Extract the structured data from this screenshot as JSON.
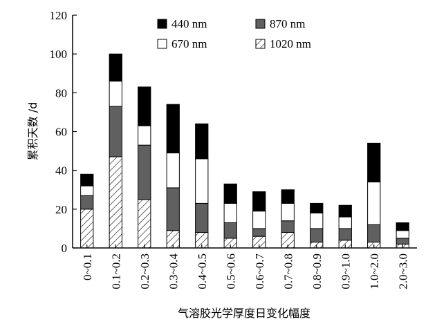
{
  "chart_data": {
    "type": "bar",
    "stacked": true,
    "ylabel": "累积天数 /d",
    "xlabel": "气溶胶光学厚度日变化幅度",
    "ylim": [
      0,
      120
    ],
    "yticks": [
      0,
      20,
      40,
      60,
      80,
      100,
      120
    ],
    "categories": [
      "0~0.1",
      "0.1~0.2",
      "0.2~0.3",
      "0.3~0.4",
      "0.4~0.5",
      "0.5~0.6",
      "0.6~0.7",
      "0.7~0.8",
      "0.8~0.9",
      "0.9~1.0",
      "1.0~2.0",
      "2.0~3.0"
    ],
    "series": [
      {
        "name": "1020 nm",
        "fill": "hatch",
        "values": [
          20,
          47,
          25,
          9,
          8,
          5,
          6,
          8,
          3,
          4,
          3,
          2
        ]
      },
      {
        "name": "870 nm",
        "fill": "#606060",
        "values": [
          7,
          26,
          28,
          22,
          15,
          8,
          4,
          6,
          7,
          6,
          9,
          3
        ]
      },
      {
        "name": "670 nm",
        "fill": "#ffffff",
        "values": [
          5,
          13,
          10,
          18,
          23,
          10,
          9,
          9,
          8,
          6,
          22,
          4
        ]
      },
      {
        "name": "440 nm",
        "fill": "#000000",
        "values": [
          6,
          14,
          20,
          25,
          18,
          10,
          10,
          7,
          5,
          6,
          20,
          4
        ]
      }
    ],
    "grid": false,
    "legend_position": "top-right"
  }
}
